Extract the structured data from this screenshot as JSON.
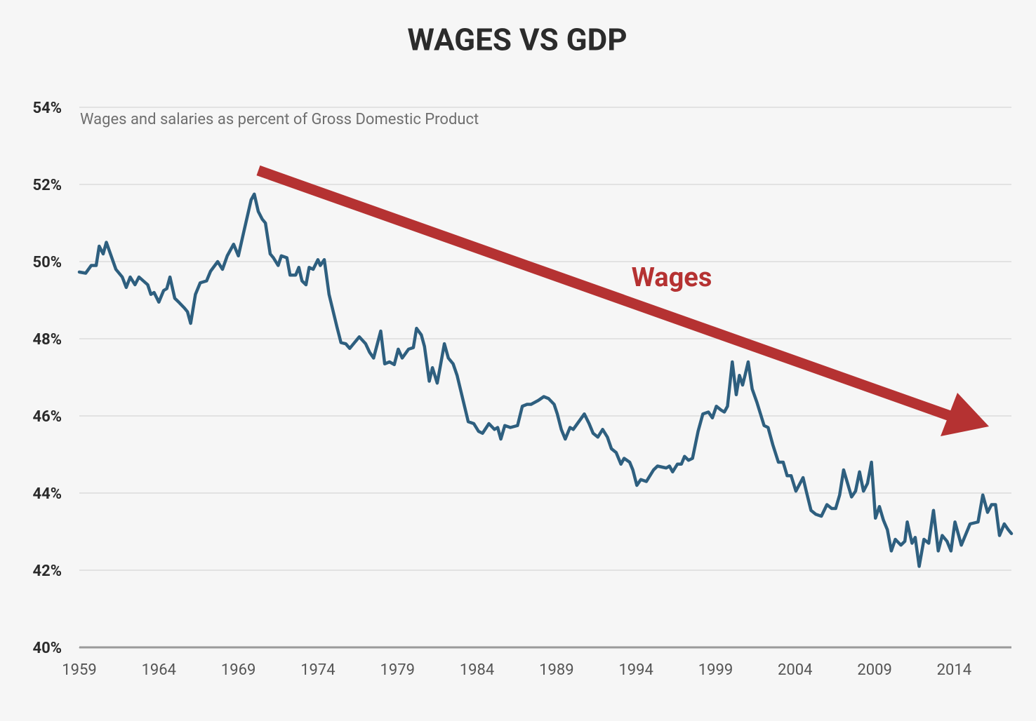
{
  "chart_data": {
    "type": "line",
    "title": "WAGES VS GDP",
    "subtitle": "Wages and salaries as percent of Gross Domestic Product",
    "annotation": "Wages",
    "color": "#2e5f7f",
    "annotation_color": "#b53232",
    "grid": true,
    "xlim": [
      1959,
      2017.6
    ],
    "ylim": [
      40,
      54
    ],
    "xticks": [
      1959,
      1964,
      1969,
      1974,
      1979,
      1984,
      1989,
      1994,
      1999,
      2004,
      2009,
      2014
    ],
    "yticks": [
      {
        "value": 40,
        "label": "40%"
      },
      {
        "value": 42,
        "label": "42%"
      },
      {
        "value": 44,
        "label": "44%"
      },
      {
        "value": 46,
        "label": "46%"
      },
      {
        "value": 48,
        "label": "48%"
      },
      {
        "value": 50,
        "label": "50%"
      },
      {
        "value": 52,
        "label": "52%"
      },
      {
        "value": 54,
        "label": "54%"
      }
    ],
    "x": [
      1959,
      1959.4,
      1959.75,
      1960.06,
      1960.25,
      1960.5,
      1960.7,
      1961.3,
      1961.7,
      1961.95,
      1962.2,
      1962.5,
      1962.75,
      1963.3,
      1963.5,
      1963.7,
      1964,
      1964.3,
      1964.5,
      1964.7,
      1965,
      1965.25,
      1965.6,
      1965.8,
      1966,
      1966.3,
      1966.6,
      1967,
      1967.25,
      1967.7,
      1968,
      1968.3,
      1968.7,
      1969,
      1969.3,
      1969.55,
      1969.8,
      1970,
      1970.25,
      1970.5,
      1970.7,
      1971,
      1971.2,
      1971.5,
      1971.7,
      1972.05,
      1972.25,
      1972.6,
      1972.8,
      1973,
      1973.25,
      1973.45,
      1973.7,
      1974,
      1974.15,
      1974.4,
      1974.7,
      1975.2,
      1975.45,
      1975.75,
      1976,
      1976.3,
      1976.6,
      1977,
      1977.25,
      1977.5,
      1977.95,
      1978.2,
      1978.5,
      1978.8,
      1979.05,
      1979.3,
      1979.7,
      1980,
      1980.2,
      1980.5,
      1980.7,
      1981,
      1981.2,
      1981.5,
      1981.7,
      1981.95,
      1982.2,
      1982.5,
      1982.75,
      1983.1,
      1983.45,
      1983.8,
      1984.1,
      1984.35,
      1984.75,
      1985.1,
      1985.3,
      1985.5,
      1985.75,
      1986.1,
      1986.55,
      1986.85,
      1987.15,
      1987.4,
      1987.85,
      1988.2,
      1988.5,
      1988.85,
      1989.05,
      1989.3,
      1989.55,
      1989.85,
      1990.05,
      1990.4,
      1990.75,
      1991.05,
      1991.3,
      1991.6,
      1991.9,
      1992.2,
      1992.45,
      1992.75,
      1993.05,
      1993.25,
      1993.6,
      1993.8,
      1994.05,
      1994.3,
      1994.65,
      1995.1,
      1995.35,
      1995.9,
      1996.1,
      1996.3,
      1996.6,
      1996.85,
      1997.05,
      1997.3,
      1997.55,
      1997.9,
      1998.2,
      1998.55,
      1998.8,
      1999.05,
      1999.35,
      1999.55,
      1999.75,
      2000.05,
      2000.3,
      2000.5,
      2000.7,
      2000.85,
      2001.05,
      2001.3,
      2001.6,
      2002.05,
      2002.3,
      2002.6,
      2002.95,
      2003.25,
      2003.5,
      2003.75,
      2004.05,
      2004.5,
      2004.7,
      2005,
      2005.3,
      2005.65,
      2006,
      2006.3,
      2006.55,
      2006.8,
      2007.05,
      2007.3,
      2007.55,
      2007.8,
      2008.05,
      2008.3,
      2008.55,
      2008.8,
      2009.05,
      2009.3,
      2009.55,
      2009.8,
      2010.05,
      2010.3,
      2010.65,
      2010.9,
      2011.05,
      2011.35,
      2011.55,
      2011.8,
      2012.1,
      2012.4,
      2012.7,
      2013,
      2013.25,
      2013.55,
      2013.8,
      2014.05,
      2014.45,
      2014.8,
      2015,
      2015.5,
      2015.8,
      2016.1,
      2016.35,
      2016.6,
      2016.85,
      2017.15,
      2017.4,
      2017.6
    ],
    "values": [
      49.73,
      49.7,
      49.9,
      49.9,
      50.4,
      50.2,
      50.5,
      49.8,
      49.6,
      49.33,
      49.6,
      49.4,
      49.6,
      49.4,
      49.15,
      49.2,
      48.95,
      49.25,
      49.3,
      49.6,
      49.05,
      48.95,
      48.8,
      48.7,
      48.4,
      49.15,
      49.45,
      49.5,
      49.75,
      50,
      49.8,
      50.15,
      50.45,
      50.15,
      50.7,
      51.15,
      51.6,
      51.75,
      51.3,
      51.1,
      51,
      50.2,
      50.1,
      49.9,
      50.15,
      50.1,
      49.65,
      49.65,
      49.85,
      49.5,
      49.4,
      49.85,
      49.8,
      50.05,
      49.9,
      50.05,
      49.15,
      48.3,
      47.9,
      47.87,
      47.75,
      47.9,
      48.05,
      47.87,
      47.65,
      47.5,
      48.2,
      47.35,
      47.4,
      47.33,
      47.73,
      47.5,
      47.73,
      47.77,
      48.27,
      48.1,
      47.8,
      46.9,
      47.25,
      46.85,
      47.3,
      47.87,
      47.5,
      47.35,
      47.05,
      46.45,
      45.85,
      45.8,
      45.6,
      45.55,
      45.8,
      45.65,
      45.7,
      45.4,
      45.75,
      45.7,
      45.75,
      46.25,
      46.3,
      46.3,
      46.4,
      46.5,
      46.45,
      46.3,
      46.05,
      45.65,
      45.4,
      45.7,
      45.65,
      45.85,
      46.05,
      45.8,
      45.55,
      45.45,
      45.65,
      45.45,
      45.15,
      45.05,
      44.75,
      44.9,
      44.8,
      44.6,
      44.2,
      44.35,
      44.3,
      44.6,
      44.7,
      44.65,
      44.7,
      44.55,
      44.75,
      44.75,
      44.95,
      44.85,
      44.9,
      45.6,
      46.05,
      46.1,
      45.95,
      46.25,
      46.15,
      46.1,
      46.25,
      47.4,
      46.55,
      47.05,
      46.8,
      47.05,
      47.4,
      46.7,
      46.35,
      45.75,
      45.7,
      45.25,
      44.8,
      44.8,
      44.45,
      44.45,
      44.05,
      44.4,
      44.05,
      43.55,
      43.45,
      43.4,
      43.7,
      43.6,
      43.6,
      43.95,
      44.6,
      44.25,
      43.9,
      44.05,
      44.55,
      44.05,
      44.25,
      44.8,
      43.35,
      43.65,
      43.3,
      43.05,
      42.5,
      42.8,
      42.65,
      42.75,
      43.25,
      42.7,
      42.85,
      42.1,
      42.8,
      42.7,
      43.55,
      42.5,
      42.9,
      42.75,
      42.5,
      43.25,
      42.65,
      43,
      43.2,
      43.25,
      43.95,
      43.5,
      43.7,
      43.7,
      42.9,
      43.2,
      43.05,
      42.95
    ]
  }
}
